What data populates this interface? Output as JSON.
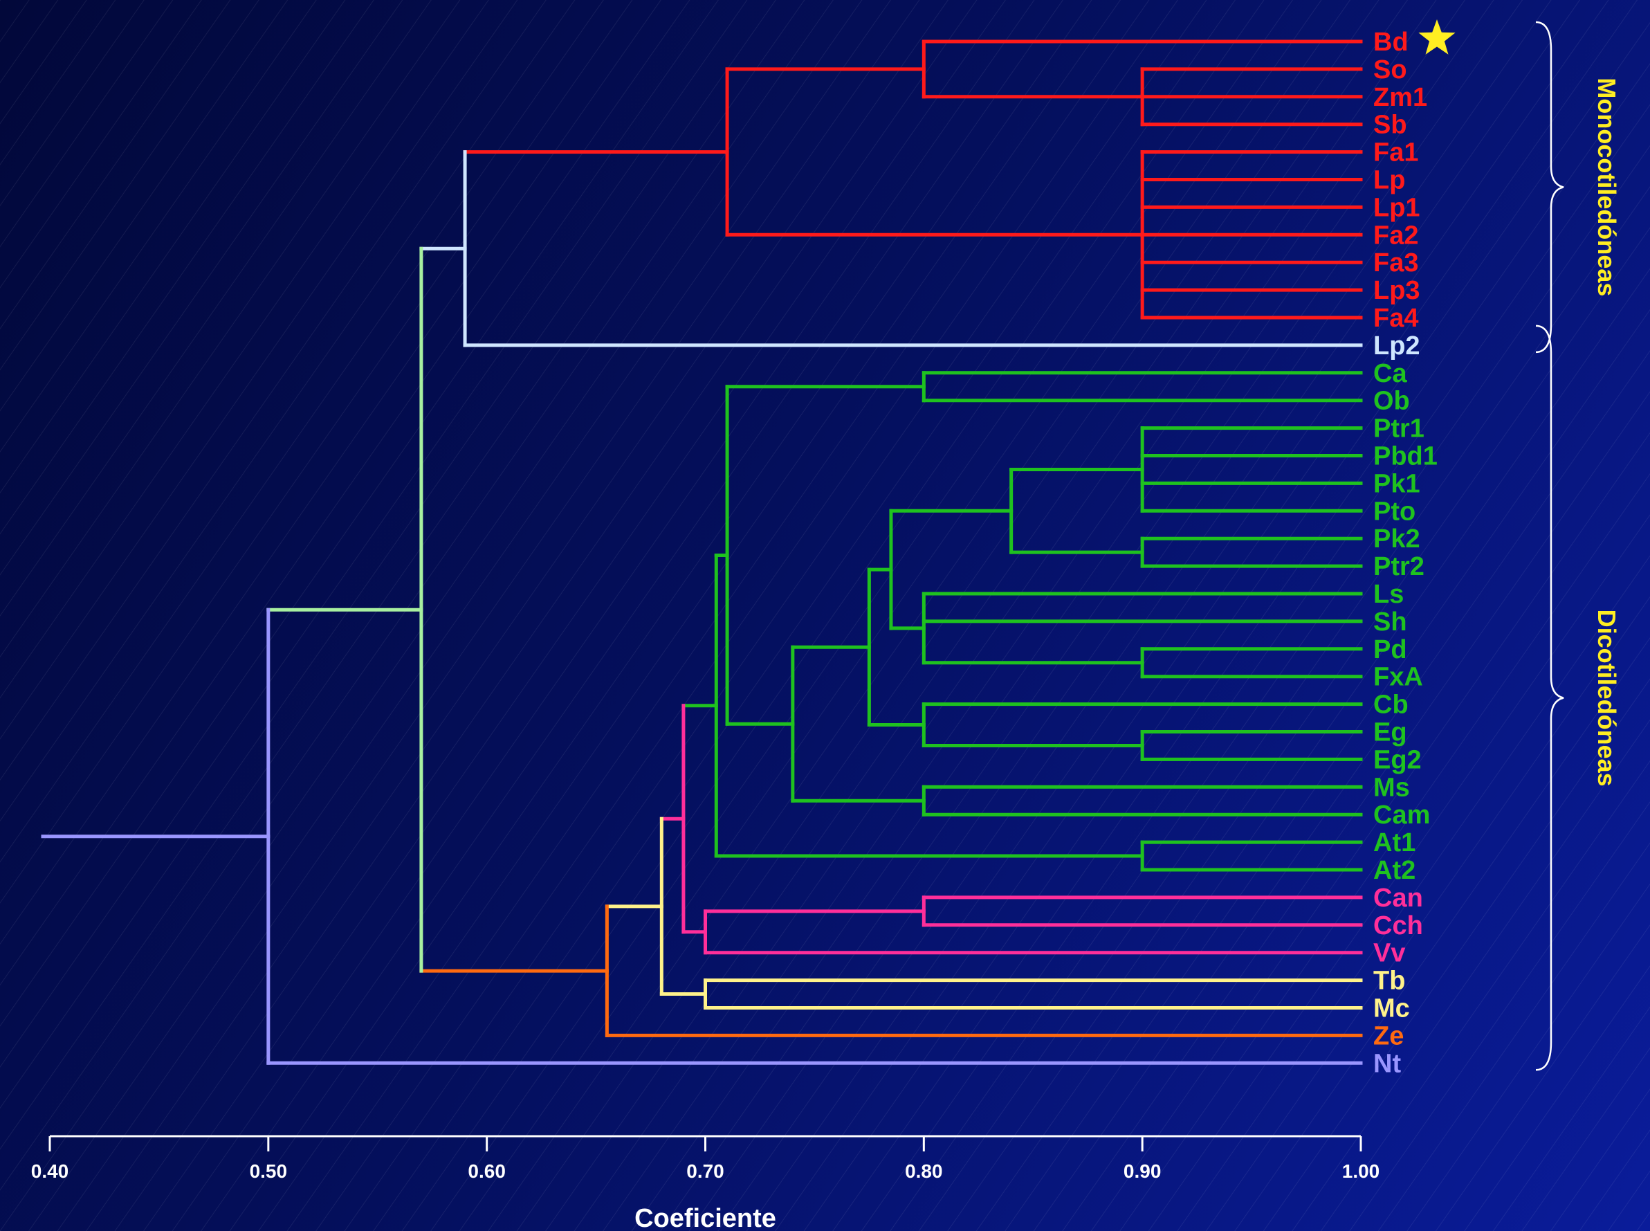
{
  "colors": {
    "monocot": "#ff1a1a",
    "lp2": "#cfe6ff",
    "dicot": "#1fc21f",
    "pink": "#ff2f9a",
    "yellow": "#fff28a",
    "orange": "#ff6a10",
    "lightgreen": "#a8f0a0",
    "lavender": "#9a96ff",
    "axis": "#ffffff",
    "star": "#ffee22",
    "group_label": "#ffee22"
  },
  "axis": {
    "title": "Coeficiente",
    "min": 0.4,
    "max": 1.0,
    "ticks": [
      "0.40",
      "0.50",
      "0.60",
      "0.70",
      "0.80",
      "0.90",
      "1.00"
    ]
  },
  "groups": [
    {
      "label": "Monocotiledóneas",
      "from": "Bd",
      "to": "Lp2"
    },
    {
      "label": "Dicotiledóneas",
      "from": "Lp2",
      "to": "Nt"
    }
  ],
  "star": {
    "leaf": "Bd",
    "icon": "star-icon"
  },
  "leaves": [
    {
      "label": "Bd",
      "color": "monocot"
    },
    {
      "label": "So",
      "color": "monocot"
    },
    {
      "label": "Zm1",
      "color": "monocot"
    },
    {
      "label": "Sb",
      "color": "monocot"
    },
    {
      "label": "Fa1",
      "color": "monocot"
    },
    {
      "label": "Lp",
      "color": "monocot"
    },
    {
      "label": "Lp1",
      "color": "monocot"
    },
    {
      "label": "Fa2",
      "color": "monocot"
    },
    {
      "label": "Fa3",
      "color": "monocot"
    },
    {
      "label": "Lp3",
      "color": "monocot"
    },
    {
      "label": "Fa4",
      "color": "monocot"
    },
    {
      "label": "Lp2",
      "color": "lp2"
    },
    {
      "label": "Ca",
      "color": "dicot"
    },
    {
      "label": "Ob",
      "color": "dicot"
    },
    {
      "label": "Ptr1",
      "color": "dicot"
    },
    {
      "label": "Pbd1",
      "color": "dicot"
    },
    {
      "label": "Pk1",
      "color": "dicot"
    },
    {
      "label": "Pto",
      "color": "dicot"
    },
    {
      "label": "Pk2",
      "color": "dicot"
    },
    {
      "label": "Ptr2",
      "color": "dicot"
    },
    {
      "label": "Ls",
      "color": "dicot"
    },
    {
      "label": "Sh",
      "color": "dicot"
    },
    {
      "label": "Pd",
      "color": "dicot"
    },
    {
      "label": "FxA",
      "color": "dicot"
    },
    {
      "label": "Cb",
      "color": "dicot"
    },
    {
      "label": "Eg",
      "color": "dicot"
    },
    {
      "label": "Eg2",
      "color": "dicot"
    },
    {
      "label": "Ms",
      "color": "dicot"
    },
    {
      "label": "Cam",
      "color": "dicot"
    },
    {
      "label": "At1",
      "color": "dicot"
    },
    {
      "label": "At2",
      "color": "dicot"
    },
    {
      "label": "Can",
      "color": "pink"
    },
    {
      "label": "Cch",
      "color": "pink"
    },
    {
      "label": "Vv",
      "color": "pink"
    },
    {
      "label": "Tb",
      "color": "yellow"
    },
    {
      "label": "Mc",
      "color": "yellow"
    },
    {
      "label": "Ze",
      "color": "orange"
    },
    {
      "label": "Nt",
      "color": "lavender"
    }
  ],
  "tree": {
    "c": 0.5,
    "color": "lavender",
    "ch": [
      {
        "c": 0.57,
        "color": "lightgreen",
        "ch": [
          {
            "c": 0.59,
            "color": "lp2",
            "ch": [
              {
                "c": 0.71,
                "color": "monocot",
                "ch": [
                  {
                    "c": 0.8,
                    "color": "monocot",
                    "ch": [
                      {
                        "leaf": "Bd"
                      },
                      {
                        "c": 0.9,
                        "color": "monocot",
                        "ch": [
                          {
                            "leaf": "So"
                          },
                          {
                            "leaf": "Zm1"
                          },
                          {
                            "leaf": "Sb"
                          }
                        ]
                      }
                    ]
                  },
                  {
                    "c": 0.9,
                    "color": "monocot",
                    "ch": [
                      {
                        "leaf": "Fa1"
                      },
                      {
                        "leaf": "Lp"
                      },
                      {
                        "leaf": "Lp1"
                      },
                      {
                        "leaf": "Fa2"
                      },
                      {
                        "leaf": "Fa3"
                      },
                      {
                        "leaf": "Lp3"
                      },
                      {
                        "leaf": "Fa4"
                      }
                    ]
                  }
                ]
              },
              {
                "leaf": "Lp2"
              }
            ]
          },
          {
            "c": 0.655,
            "color": "orange",
            "ch": [
              {
                "c": 0.68,
                "color": "yellow",
                "ch": [
                  {
                    "c": 0.69,
                    "color": "pink",
                    "ch": [
                      {
                        "c": 0.705,
                        "color": "dicot",
                        "ch": [
                          {
                            "c": 0.71,
                            "color": "dicot",
                            "ch": [
                              {
                                "c": 0.8,
                                "color": "dicot",
                                "ch": [
                                  {
                                    "leaf": "Ca"
                                  },
                                  {
                                    "leaf": "Ob"
                                  }
                                ]
                              },
                              {
                                "c": 0.74,
                                "color": "dicot",
                                "ch": [
                                  {
                                    "c": 0.775,
                                    "color": "dicot",
                                    "ch": [
                                      {
                                        "c": 0.785,
                                        "color": "dicot",
                                        "ch": [
                                          {
                                            "c": 0.84,
                                            "color": "dicot",
                                            "ch": [
                                              {
                                                "c": 0.9,
                                                "color": "dicot",
                                                "ch": [
                                                  {
                                                    "leaf": "Ptr1"
                                                  },
                                                  {
                                                    "leaf": "Pbd1"
                                                  },
                                                  {
                                                    "leaf": "Pk1"
                                                  },
                                                  {
                                                    "leaf": "Pto"
                                                  }
                                                ]
                                              },
                                              {
                                                "c": 0.9,
                                                "color": "dicot",
                                                "ch": [
                                                  {
                                                    "leaf": "Pk2"
                                                  },
                                                  {
                                                    "leaf": "Ptr2"
                                                  }
                                                ]
                                              }
                                            ]
                                          },
                                          {
                                            "c": 0.8,
                                            "color": "dicot",
                                            "ch": [
                                              {
                                                "leaf": "Ls"
                                              },
                                              {
                                                "leaf": "Sh"
                                              },
                                              {
                                                "c": 0.9,
                                                "color": "dicot",
                                                "ch": [
                                                  {
                                                    "leaf": "Pd"
                                                  },
                                                  {
                                                    "leaf": "FxA"
                                                  }
                                                ]
                                              }
                                            ]
                                          }
                                        ]
                                      },
                                      {
                                        "c": 0.8,
                                        "color": "dicot",
                                        "ch": [
                                          {
                                            "leaf": "Cb"
                                          },
                                          {
                                            "c": 0.9,
                                            "color": "dicot",
                                            "ch": [
                                              {
                                                "leaf": "Eg"
                                              },
                                              {
                                                "leaf": "Eg2"
                                              }
                                            ]
                                          }
                                        ]
                                      }
                                    ]
                                  },
                                  {
                                    "c": 0.8,
                                    "color": "dicot",
                                    "ch": [
                                      {
                                        "leaf": "Ms"
                                      },
                                      {
                                        "leaf": "Cam"
                                      }
                                    ]
                                  }
                                ]
                              }
                            ]
                          },
                          {
                            "c": 0.9,
                            "color": "dicot",
                            "ch": [
                              {
                                "leaf": "At1"
                              },
                              {
                                "leaf": "At2"
                              }
                            ]
                          }
                        ]
                      },
                      {
                        "c": 0.7,
                        "color": "pink",
                        "ch": [
                          {
                            "c": 0.8,
                            "color": "pink",
                            "ch": [
                              {
                                "leaf": "Can"
                              },
                              {
                                "leaf": "Cch"
                              }
                            ]
                          },
                          {
                            "leaf": "Vv"
                          }
                        ]
                      }
                    ]
                  },
                  {
                    "c": 0.7,
                    "color": "yellow",
                    "ch": [
                      {
                        "leaf": "Tb"
                      },
                      {
                        "leaf": "Mc"
                      }
                    ]
                  }
                ]
              },
              {
                "leaf": "Ze"
              }
            ]
          }
        ]
      },
      {
        "leaf": "Nt"
      }
    ]
  }
}
